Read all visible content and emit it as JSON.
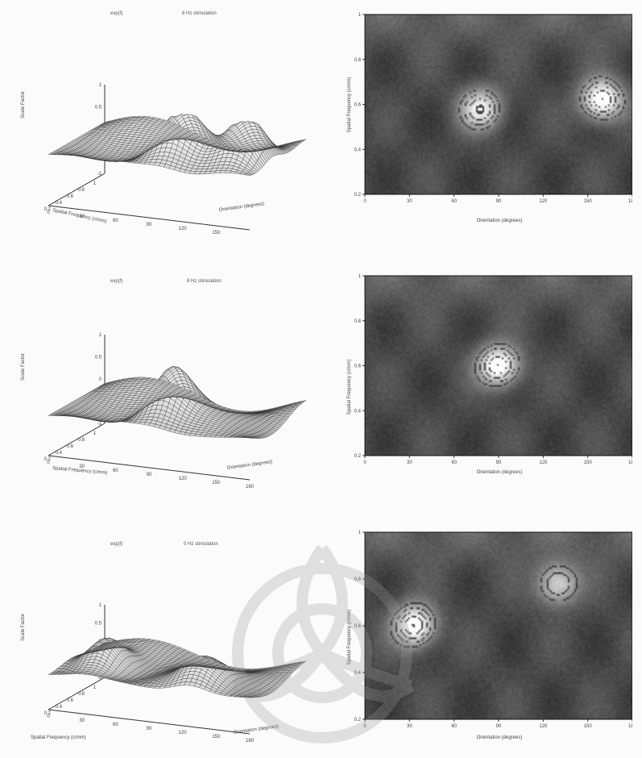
{
  "rows": [
    {
      "surface": {
        "title_left": "exp(f)",
        "title_right": "8 Hz stimulation",
        "z_label": "Scale Factor",
        "z_ticks": [
          "1",
          "0.5",
          "0",
          "-0.5",
          "-1"
        ],
        "sf_label": "Spatial Frequency (c/mm)",
        "sf_ticks": [
          "1",
          "0.8",
          "0.6",
          "0.4",
          "0.2"
        ],
        "or_label": "Orientation (degrees)",
        "or_ticks": [
          "0",
          "30",
          "60",
          "90",
          "120",
          "150",
          "180"
        ]
      },
      "contour": {
        "y_label": "Spatial Frequency (c/mm)",
        "y_ticks": [
          "1",
          "0.8",
          "0.6",
          "0.4",
          "0.2"
        ],
        "x_label": "Orientation (degrees)",
        "x_ticks": [
          "0",
          "30",
          "60",
          "90",
          "120",
          "150",
          "180"
        ]
      }
    },
    {
      "surface": {
        "title_left": "exp(f)",
        "title_right": "8 Hz stimulation",
        "z_label": "Scale Factor",
        "z_ticks": [
          "1",
          "0.5",
          "0",
          "-0.5",
          "-1"
        ],
        "sf_label": "Spatial Frequency (c/mm)",
        "sf_ticks": [
          "1",
          "0.8",
          "0.6",
          "0.4",
          "0.2"
        ],
        "or_label": "Orientation (degrees)",
        "or_ticks": [
          "0",
          "30",
          "60",
          "90",
          "120",
          "150",
          "180"
        ]
      },
      "contour": {
        "y_label": "Spatial Frequency (c/mm)",
        "y_ticks": [
          "1",
          "0.8",
          "0.6",
          "0.4",
          "0.2"
        ],
        "x_label": "Orientation (degrees)",
        "x_ticks": [
          "0",
          "30",
          "60",
          "90",
          "120",
          "150",
          "180"
        ]
      }
    },
    {
      "surface": {
        "title_left": "exp(f)",
        "title_right": "0 Hz stimulation",
        "z_label": "Scale Factor",
        "z_ticks": [
          "1",
          "0.5",
          "0",
          "-0.5",
          "-1"
        ],
        "sf_label": "Spatial Frequency (c/mm)",
        "sf_ticks": [
          "1",
          "0.8",
          "0.6",
          "0.4",
          "0.2"
        ],
        "or_label": "Orientation (degrees)",
        "or_ticks": [
          "0",
          "30",
          "60",
          "90",
          "120",
          "150",
          "180"
        ]
      },
      "contour": {
        "y_label": "Spatial Frequency (c/mm)",
        "y_ticks": [
          "1",
          "0.8",
          "0.6",
          "0.4",
          "0.2"
        ],
        "x_label": "Orientation (degrees)",
        "x_ticks": [
          "0",
          "30",
          "60",
          "90",
          "120",
          "150",
          "180"
        ]
      }
    }
  ],
  "chart_data": [
    {
      "type": "heatmap",
      "title": "",
      "xlabel": "Orientation (degrees)",
      "ylabel": "Spatial Frequency (c/mm)",
      "xlim": [
        0,
        180
      ],
      "ylim": [
        0.2,
        1
      ],
      "peaks": [
        {
          "x": 78,
          "y": 0.58,
          "level": 0.8
        },
        {
          "x": 160,
          "y": 0.62,
          "level": 1.0
        }
      ]
    },
    {
      "type": "heatmap",
      "title": "",
      "xlabel": "Orientation (degrees)",
      "ylabel": "Spatial Frequency (c/mm)",
      "xlim": [
        0,
        180
      ],
      "ylim": [
        0.2,
        1
      ],
      "peaks": [
        {
          "x": 90,
          "y": 0.6,
          "level": 1.0
        }
      ]
    },
    {
      "type": "heatmap",
      "title": "",
      "xlabel": "Orientation (degrees)",
      "ylabel": "Spatial Frequency (c/mm)",
      "xlim": [
        0,
        180
      ],
      "ylim": [
        0.2,
        1
      ],
      "peaks": [
        {
          "x": 33,
          "y": 0.6,
          "level": 1.0
        },
        {
          "x": 130,
          "y": 0.78,
          "level": 0.7
        }
      ]
    }
  ]
}
